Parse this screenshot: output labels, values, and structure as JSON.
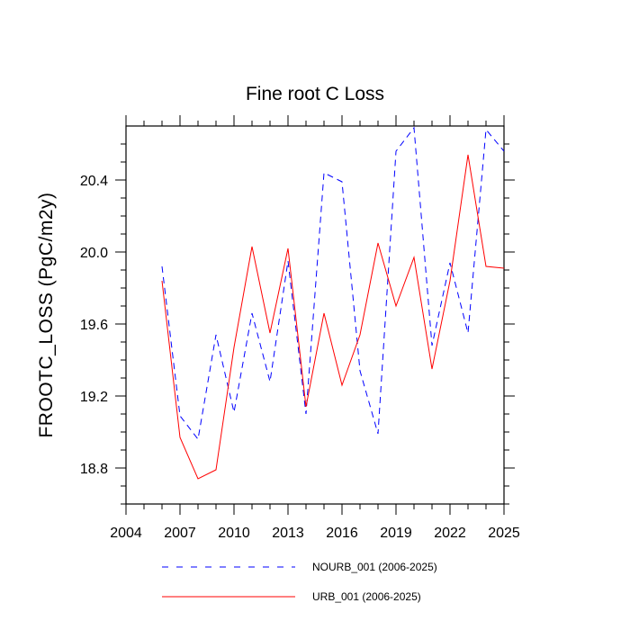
{
  "chart_data": {
    "type": "line",
    "title": "Fine root C Loss",
    "xlabel": "",
    "ylabel": "FROOTC_LOSS  (PgC/m2y)",
    "xlim": [
      2004,
      2025
    ],
    "ylim": [
      18.6,
      20.7
    ],
    "x_ticks": [
      2004,
      2007,
      2010,
      2013,
      2016,
      2019,
      2022,
      2025
    ],
    "x_tick_labels": [
      "2004",
      "2007",
      "2010",
      "2013",
      "2016",
      "2019",
      "2022",
      "2025"
    ],
    "y_ticks": [
      18.8,
      19.2,
      19.6,
      20.0,
      20.4
    ],
    "y_tick_labels": [
      "18.8",
      "19.2",
      "19.6",
      "20.0",
      "20.4"
    ],
    "grid": false,
    "legend_position": "bottom",
    "x": [
      2006,
      2007,
      2008,
      2009,
      2010,
      2011,
      2012,
      2013,
      2014,
      2015,
      2016,
      2017,
      2018,
      2019,
      2020,
      2021,
      2022,
      2023,
      2024,
      2025
    ],
    "series": [
      {
        "name": "NOURB_001 (2006-2025)",
        "color": "#0000ff",
        "dash": "dashed",
        "values": [
          19.92,
          19.09,
          18.96,
          19.54,
          19.11,
          19.66,
          19.28,
          19.95,
          19.1,
          20.44,
          20.39,
          19.34,
          18.99,
          20.56,
          20.69,
          19.48,
          19.94,
          19.55,
          20.68,
          20.56
        ]
      },
      {
        "name": "URB_001 (2006-2025)",
        "color": "#ff0000",
        "dash": "solid",
        "values": [
          19.84,
          18.97,
          18.74,
          18.79,
          19.47,
          20.03,
          19.55,
          20.02,
          19.14,
          19.66,
          19.26,
          19.54,
          20.05,
          19.7,
          19.97,
          19.35,
          19.84,
          20.54,
          19.92,
          19.91
        ]
      }
    ]
  }
}
